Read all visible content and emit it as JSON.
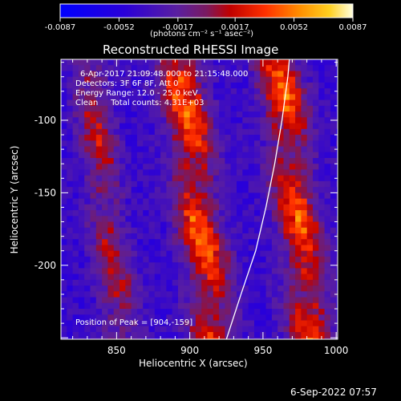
{
  "chart_data": {
    "type": "heatmap",
    "title": "Reconstructed RHESSI Image",
    "xlabel": "Heliocentric X (arcsec)",
    "ylabel": "Heliocentric Y (arcsec)",
    "xlim": [
      812,
      1001
    ],
    "ylim": [
      -251,
      -58
    ],
    "xticks": [
      850,
      900,
      950,
      1000
    ],
    "xtick_labels": [
      "850",
      "900",
      "950",
      "1000"
    ],
    "yticks": [
      -100,
      -150,
      -200
    ],
    "ytick_labels": [
      "-100",
      "-150",
      "-200"
    ],
    "colorbar": {
      "range": [
        -0.0087,
        0.0087
      ],
      "ticks": [
        -0.0087,
        -0.0052,
        -0.0017,
        0.0017,
        0.0052,
        0.0087
      ],
      "tick_labels": [
        "-0.0087",
        "-0.0052",
        "-0.0017",
        "0.0017",
        "0.0052",
        "0.0087"
      ],
      "unit_label": "(photons cm⁻² s⁻¹ asec⁻²)"
    },
    "annotations": {
      "time": "6-Apr-2017 21:09:48.000 to 21:15:48.000",
      "detectors": "Detectors: 3F 6F 8F, Att 0",
      "energy": "Energy Range: 12.0 - 25.0 keV",
      "clean": "Clean     Total counts: 4.31E+03",
      "peak": "Position of Peak = [904,-159]"
    },
    "limb_x_at_y": [
      [
        925,
        -251
      ],
      [
        935,
        -220
      ],
      [
        945,
        -190
      ],
      [
        952,
        -160
      ],
      [
        958,
        -130
      ],
      [
        963,
        -100
      ],
      [
        967,
        -70
      ],
      [
        968,
        -58
      ]
    ],
    "bands": [
      {
        "x_center": 840,
        "slope": -0.12,
        "sigma": 9,
        "amp": 0.0055
      },
      {
        "x_center": 903,
        "slope": -0.12,
        "sigma": 11,
        "amp": 0.0087
      },
      {
        "x_center": 970,
        "slope": -0.12,
        "sigma": 11,
        "amp": 0.008
      }
    ]
  },
  "footer_date": "6-Sep-2022 07:57"
}
